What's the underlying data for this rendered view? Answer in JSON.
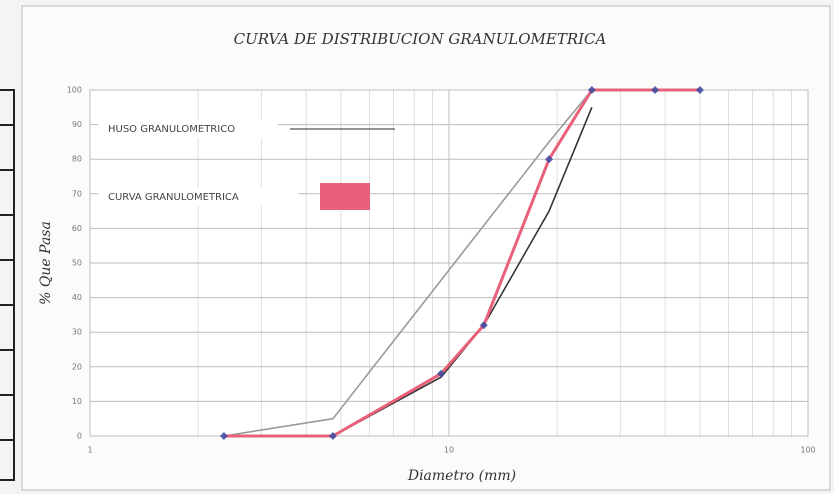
{
  "chart_data": {
    "type": "line",
    "title": "CURVA DE DISTRIBUCION GRANULOMETRICA",
    "x_label": "Diametro  (mm)",
    "y_label": "% Que Pasa",
    "log_x": true,
    "grid": true,
    "xlim": [
      1,
      100
    ],
    "xticks": [
      1,
      10,
      100
    ],
    "x_minor_ticks": [
      2,
      3,
      4,
      5,
      6,
      7,
      8,
      9,
      20,
      30,
      40,
      50,
      60,
      70,
      80,
      90
    ],
    "ylim": [
      0,
      100
    ],
    "yticks": [
      0,
      10,
      20,
      30,
      40,
      50,
      60,
      70,
      80,
      90,
      100
    ],
    "series": [
      {
        "name": "HUSO GRANULOMETRICO",
        "color": "#9a9a9a",
        "x": [
          2.36,
          4.75,
          19,
          25
        ],
        "values": [
          0,
          5,
          85,
          100
        ]
      },
      {
        "color": "#333333",
        "x": [
          4.75,
          9.5,
          12.5,
          19,
          25
        ],
        "values": [
          0,
          17,
          32,
          65,
          95
        ]
      },
      {
        "name": "CURVA GRANULOMETRICA",
        "color": "#e8607a",
        "marker_color": "#3a4aa0",
        "x": [
          2.36,
          4.75,
          9.5,
          12.5,
          19,
          25,
          37.5,
          50
        ],
        "values": [
          0,
          0,
          18,
          32,
          80,
          100,
          100,
          100
        ]
      }
    ]
  }
}
